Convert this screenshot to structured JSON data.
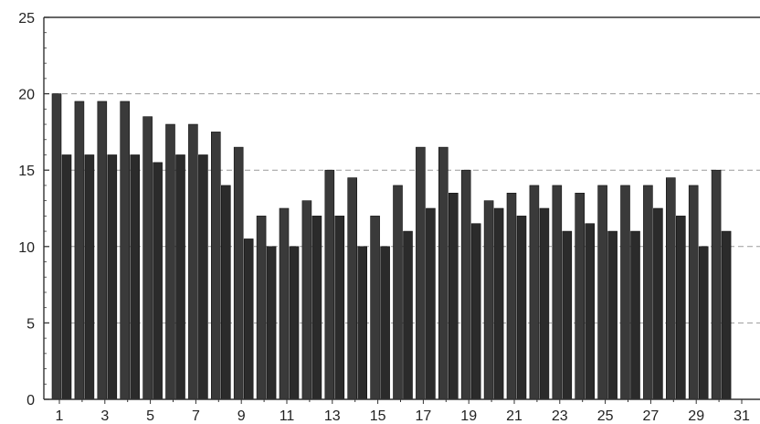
{
  "chart_data": {
    "type": "bar",
    "categories": [
      1,
      2,
      3,
      4,
      5,
      6,
      7,
      8,
      9,
      10,
      11,
      12,
      13,
      14,
      15,
      16,
      17,
      18,
      19,
      20,
      21,
      22,
      23,
      24,
      25,
      26,
      27,
      28,
      29,
      30
    ],
    "series": [
      {
        "values": [
          20,
          19.5,
          19.5,
          19.5,
          18.5,
          18,
          18,
          17.5,
          16.5,
          12,
          12.5,
          13,
          15,
          14.5,
          12,
          14,
          16.5,
          16.5,
          15,
          13,
          13.5,
          14,
          14,
          13.5,
          14,
          14,
          14,
          14.5,
          14,
          15
        ]
      },
      {
        "values": [
          16,
          16,
          16,
          16,
          15.5,
          16,
          16,
          14,
          10.5,
          10,
          10,
          12,
          12,
          10,
          10,
          11,
          12.5,
          13.5,
          11.5,
          12.5,
          12,
          12.5,
          11,
          11.5,
          11,
          11,
          12.5,
          12,
          10,
          11
        ]
      }
    ],
    "x_tick_labels": [
      "1",
      "3",
      "5",
      "7",
      "9",
      "11",
      "13",
      "15",
      "17",
      "19",
      "21",
      "23",
      "25",
      "27",
      "29",
      "31"
    ],
    "y_tick_labels": [
      "0",
      "5",
      "10",
      "15",
      "20",
      "25"
    ],
    "ylim": [
      0,
      25
    ],
    "gridlines": [
      5,
      10,
      15,
      20
    ],
    "grid": "horizontal dashed",
    "colors": {
      "series_a": "#3a3a3a",
      "series_b": "#2b2b2b",
      "frame": "#333333",
      "grid": "#9a9a9a"
    }
  }
}
